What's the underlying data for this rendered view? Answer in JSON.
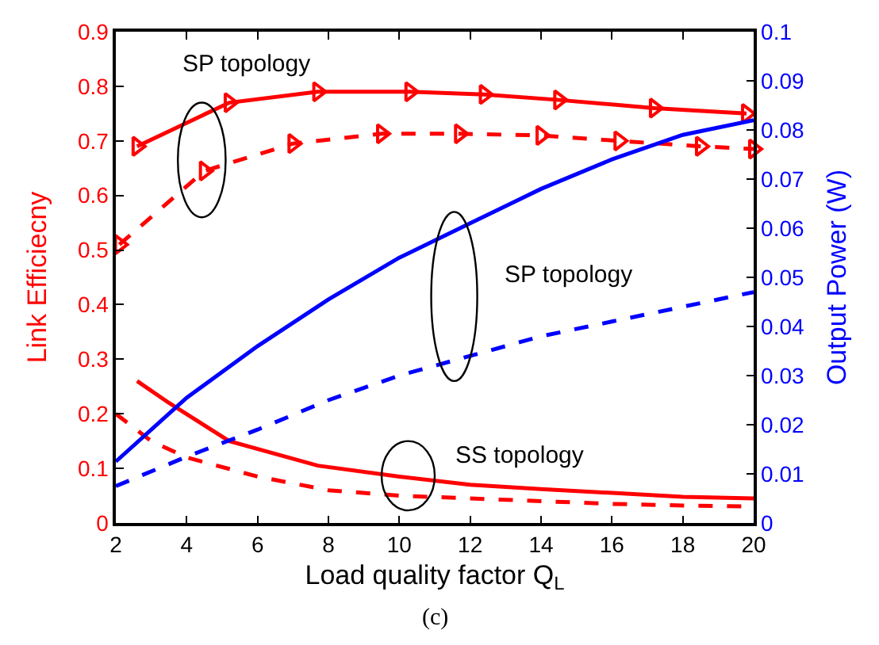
{
  "chart_data": {
    "type": "line",
    "xlabel": "Load quality factor Q$_{L}$",
    "ylabel": "Link Efficiecny",
    "y2label": "Output Power (W)",
    "xlim": [
      2,
      20
    ],
    "xticks": [
      2,
      4,
      6,
      8,
      10,
      12,
      14,
      16,
      18,
      20
    ],
    "ylim": [
      0,
      0.9
    ],
    "yticks": [
      0,
      0.1,
      0.2,
      0.3,
      0.4,
      0.5,
      0.6,
      0.7,
      0.8,
      0.9
    ],
    "y2lim": [
      0,
      0.1
    ],
    "y2ticks": [
      0,
      0.01,
      0.02,
      0.03,
      0.04,
      0.05,
      0.06,
      0.07,
      0.08,
      0.09,
      0.1
    ],
    "series": [
      {
        "color": "#ff0000",
        "line_style": "solid",
        "marker": "triangle",
        "x": [
          2.6,
          5.2,
          7.7,
          10.3,
          12.4,
          14.5,
          17.2,
          19.8
        ],
        "values": [
          0.69,
          0.77,
          0.79,
          0.79,
          0.785,
          0.775,
          0.76,
          0.75
        ]
      },
      {
        "color": "#ff0000",
        "line_style": "dashed",
        "marker": "triangle",
        "x": [
          2.1,
          4.5,
          7.0,
          9.5,
          11.7,
          14.0,
          16.2,
          18.5,
          20
        ],
        "values": [
          0.51,
          0.645,
          0.695,
          0.713,
          0.713,
          0.71,
          0.7,
          0.69,
          0.685
        ]
      },
      {
        "color": "#ff0000",
        "line_style": "solid",
        "marker": "none",
        "x": [
          2.6,
          3.5,
          5.2,
          7.7,
          10,
          12,
          14,
          16,
          18,
          20
        ],
        "values": [
          0.26,
          0.22,
          0.15,
          0.105,
          0.085,
          0.07,
          0.062,
          0.055,
          0.048,
          0.045
        ]
      },
      {
        "color": "#ff0000",
        "line_style": "dashed",
        "marker": "none",
        "x": [
          2,
          3,
          4,
          6,
          8,
          10,
          12,
          14,
          16,
          18,
          20
        ],
        "values": [
          0.2,
          0.15,
          0.12,
          0.085,
          0.06,
          0.05,
          0.045,
          0.04,
          0.035,
          0.032,
          0.03
        ]
      },
      {
        "color": "#0000ff",
        "line_style": "solid",
        "marker": "none",
        "axis": "y2",
        "x": [
          2,
          4,
          6,
          8,
          10,
          12,
          14,
          16,
          18,
          20
        ],
        "values": [
          0.0125,
          0.0255,
          0.036,
          0.0455,
          0.054,
          0.061,
          0.068,
          0.074,
          0.079,
          0.082
        ]
      },
      {
        "color": "#0000ff",
        "line_style": "dashed",
        "marker": "none",
        "axis": "y2",
        "x": [
          2,
          4,
          6,
          8,
          10,
          12,
          14,
          16,
          18,
          20
        ],
        "values": [
          0.0075,
          0.0135,
          0.019,
          0.025,
          0.03,
          0.034,
          0.038,
          0.041,
          0.044,
          0.047
        ]
      }
    ],
    "annotations": [
      "SP topology",
      "SP topology",
      "SS topology",
      "(c)"
    ]
  }
}
